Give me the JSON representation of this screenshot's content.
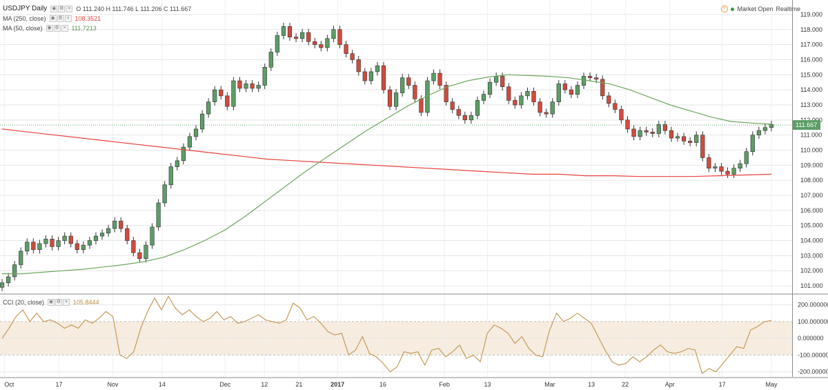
{
  "legend": {
    "symbol": "USDJPY Daily",
    "ohlc_text": "O 111.240  H 111.746  L 111.206  C 111.667",
    "ma250_label": "MA (250, close)",
    "ma250_value": "108.3521",
    "ma50_label": "MA (50, close)",
    "ma50_value": "111.7213",
    "cci_label": "CCI (20, close)",
    "cci_value": "105.8444"
  },
  "status": {
    "text": "Market Open",
    "mode": "Realtime"
  },
  "colors": {
    "up": "#5c9e66",
    "down": "#d14b3c",
    "ma50": "#6aa85b",
    "ma250": "#e8413a",
    "cci": "#c59a58",
    "band": "#f6ede0",
    "grid": "#e6e6e6",
    "price_tag": "#5c9e66"
  },
  "chart_data": [
    {
      "type": "candlestick",
      "title": "USDJPY Daily",
      "x_ticks": [
        "Oct",
        "17",
        "Nov",
        "14",
        "Dec",
        "12",
        "21",
        "2017",
        "16",
        "Feb",
        "13",
        "Mar",
        "13",
        "22",
        "Apr",
        "17",
        "May"
      ],
      "y_ticks": [
        101,
        102,
        103,
        104,
        105,
        106,
        107,
        108,
        109,
        110,
        111,
        112,
        113,
        114,
        115,
        116,
        117,
        118,
        119
      ],
      "ylim": [
        100.5,
        119.5
      ],
      "last_price": "111.667",
      "closes": [
        101.2,
        101.6,
        102.4,
        103.3,
        103.9,
        103.4,
        103.8,
        104.1,
        103.6,
        104.0,
        104.3,
        103.8,
        103.4,
        103.7,
        104.0,
        104.3,
        104.5,
        104.8,
        105.3,
        104.8,
        104.0,
        103.2,
        102.8,
        103.7,
        104.9,
        106.5,
        107.7,
        108.9,
        109.3,
        110.2,
        110.9,
        111.4,
        112.4,
        113.2,
        114.0,
        113.6,
        112.9,
        114.6,
        114.1,
        114.4,
        114.1,
        114.3,
        115.5,
        116.5,
        117.6,
        118.2,
        117.5,
        117.4,
        117.8,
        117.2,
        117.0,
        116.8,
        117.4,
        118.0,
        117.0,
        116.4,
        116.0,
        115.2,
        114.6,
        115.2,
        115.6,
        114.0,
        112.9,
        113.8,
        114.8,
        114.3,
        113.4,
        112.5,
        114.6,
        115.1,
        114.3,
        113.2,
        112.7,
        112.3,
        112.0,
        112.3,
        113.3,
        113.7,
        114.5,
        114.9,
        114.2,
        113.3,
        113.0,
        113.6,
        113.9,
        113.2,
        112.5,
        112.4,
        113.2,
        114.4,
        114.0,
        113.7,
        114.3,
        114.9,
        114.8,
        114.7,
        113.6,
        113.1,
        112.7,
        112.0,
        111.4,
        110.9,
        111.3,
        111.2,
        111.1,
        111.7,
        111.3,
        110.8,
        110.9,
        110.6,
        110.5,
        111.0,
        109.5,
        108.8,
        108.9,
        108.6,
        108.4,
        108.8,
        109.1,
        109.9,
        111.0,
        111.3,
        111.5,
        111.7
      ],
      "series": [
        {
          "name": "MA (250, close)",
          "values": [
            111.4,
            111.2,
            111.0,
            110.8,
            110.6,
            110.4,
            110.2,
            110.0,
            109.8,
            109.6,
            109.4,
            109.3,
            109.2,
            109.1,
            109.0,
            108.9,
            108.8,
            108.7,
            108.6,
            108.5,
            108.4,
            108.4,
            108.3,
            108.3,
            108.25,
            108.25,
            108.25,
            108.3,
            108.35,
            108.4
          ]
        },
        {
          "name": "MA (50, close)",
          "values": [
            101.8,
            101.8,
            101.9,
            102.0,
            102.1,
            102.25,
            102.4,
            102.6,
            102.9,
            103.4,
            104.0,
            104.7,
            105.6,
            106.6,
            107.6,
            108.6,
            109.5,
            110.4,
            111.3,
            112.1,
            112.9,
            113.6,
            114.2,
            114.6,
            114.85,
            115.0,
            114.95,
            114.9,
            114.8,
            114.6,
            114.4,
            114.0,
            113.5,
            113.0,
            112.6,
            112.2,
            111.9,
            111.8,
            111.72
          ]
        }
      ]
    },
    {
      "type": "line",
      "title": "CCI (20, close)",
      "y_ticks": [
        -200,
        -100,
        0,
        100,
        200
      ],
      "ylim": [
        -230,
        260
      ],
      "band": [
        -100,
        100
      ],
      "series": [
        {
          "name": "CCI (20, close)",
          "values": [
            0,
            60,
            130,
            170,
            100,
            150,
            100,
            110,
            90,
            60,
            80,
            60,
            110,
            90,
            120,
            160,
            130,
            -100,
            -120,
            -80,
            60,
            160,
            240,
            170,
            250,
            180,
            140,
            170,
            130,
            100,
            120,
            160,
            110,
            130,
            90,
            100,
            120,
            140,
            110,
            100,
            90,
            110,
            210,
            180,
            110,
            130,
            90,
            40,
            20,
            30,
            -100,
            -70,
            10,
            -90,
            -110,
            -150,
            -200,
            -170,
            -80,
            -90,
            -80,
            -160,
            -70,
            -60,
            -110,
            -80,
            -40,
            -120,
            -100,
            -140,
            30,
            80,
            60,
            30,
            -30,
            10,
            -60,
            -100,
            -110,
            50,
            150,
            100,
            120,
            150,
            120,
            90,
            10,
            -70,
            -140,
            -160,
            -150,
            -110,
            -140,
            -110,
            -70,
            -40,
            -80,
            -90,
            -80,
            -60,
            -70,
            -210,
            -180,
            -200,
            -150,
            -100,
            -50,
            -60,
            50,
            70,
            100,
            105.8
          ]
        }
      ]
    }
  ]
}
